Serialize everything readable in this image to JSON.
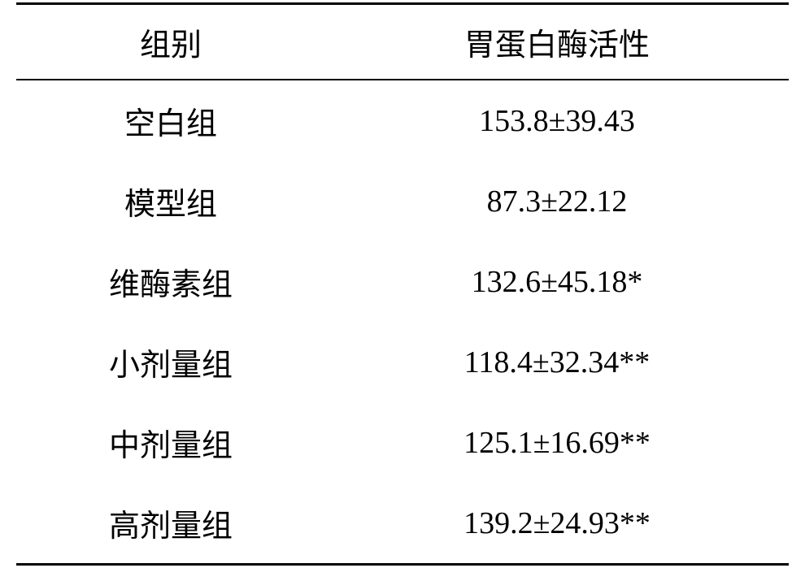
{
  "table": {
    "type": "table",
    "columns": [
      {
        "key": "group",
        "label": "组别",
        "width": "40%",
        "align": "center"
      },
      {
        "key": "activity",
        "label": "胃蛋白酶活性",
        "width": "60%",
        "align": "center"
      }
    ],
    "rows": [
      {
        "group": "空白组",
        "activity": "153.8±39.43"
      },
      {
        "group": "模型组",
        "activity": "87.3±22.12"
      },
      {
        "group": "维酶素组",
        "activity": "132.6±45.18*"
      },
      {
        "group": "小剂量组",
        "activity": "118.4±32.34**"
      },
      {
        "group": "中剂量组",
        "activity": "125.1±16.69**"
      },
      {
        "group": "高剂量组",
        "activity": "139.2±24.93**"
      }
    ],
    "border_top_color": "#000000",
    "border_top_width": 3,
    "header_border_bottom_width": 2,
    "border_bottom_width": 3,
    "background_color": "#ffffff",
    "text_color": "#000000",
    "font_size": 38,
    "cell_padding_v": 22,
    "header_padding_v": 18
  }
}
